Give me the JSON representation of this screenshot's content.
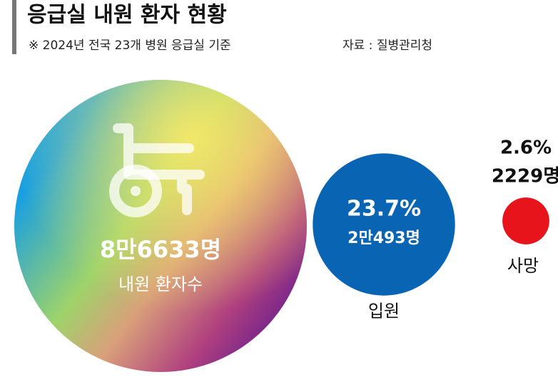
{
  "chart_data": {
    "type": "bubble",
    "title": "응급실 내원 환자 현황",
    "subtitle": "※ 2024년 전국 23개 병원 응급실 기준",
    "source": "자료 : 질병관리청",
    "categories": [
      "내원 환자수",
      "입원",
      "사망"
    ],
    "values": [
      86633,
      20493,
      2229
    ],
    "value_labels": [
      "8만6633명",
      "2만493명",
      "2229명"
    ],
    "shares": [
      null,
      23.7,
      2.6
    ],
    "share_labels": [
      null,
      "23.7%",
      "2.6%"
    ],
    "colors": [
      "url(#rainbow)",
      "#0a64b4",
      "#e8141c"
    ]
  }
}
